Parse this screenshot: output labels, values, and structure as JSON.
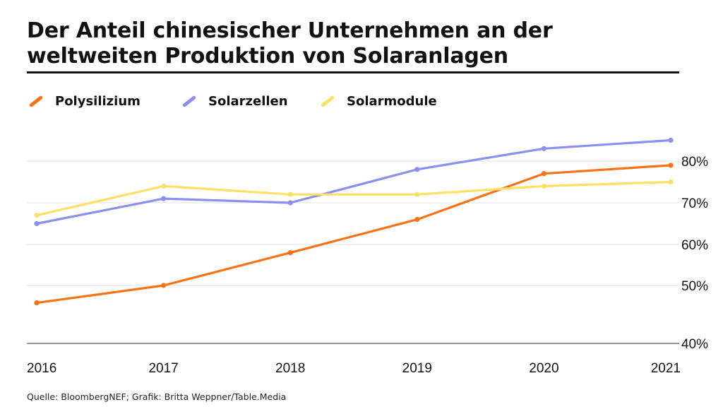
{
  "header": {
    "title": "Der Anteil chinesischer Unternehmen an der weltweiten Produktion von Solaranlagen"
  },
  "legend": {
    "items": [
      {
        "label": "Polysilizium",
        "color": "#f97316"
      },
      {
        "label": "Solarzellen",
        "color": "#8b8ff0"
      },
      {
        "label": "Solarmodule",
        "color": "#fde068"
      }
    ]
  },
  "footer": {
    "source": "Quelle: BloombergNEF; Grafik: Britta Weppner/Table.Media"
  },
  "chart_data": {
    "type": "line",
    "title": "Der Anteil chinesischer Unternehmen an der weltweiten Produktion von Solaranlagen",
    "xlabel": "",
    "ylabel": "",
    "categories": [
      "2016",
      "2017",
      "2018",
      "2019",
      "2020",
      "2021"
    ],
    "series": [
      {
        "name": "Polysilizium",
        "color": "#f97316",
        "values": [
          47,
          50,
          58,
          66,
          77,
          79
        ]
      },
      {
        "name": "Solarzellen",
        "color": "#8b8ff0",
        "values": [
          65,
          71,
          70,
          78,
          83,
          85
        ]
      },
      {
        "name": "Solarmodule",
        "color": "#fde068",
        "values": [
          67,
          74,
          72,
          72,
          74,
          75
        ]
      }
    ],
    "yticks": [
      40,
      50,
      60,
      70,
      80
    ],
    "ytick_labels": [
      "40%",
      "50%",
      "60%",
      "70%",
      "80%"
    ],
    "ylim": [
      40,
      90
    ],
    "grid": true,
    "y_axis_position": "right",
    "legend_position": "top-left"
  }
}
